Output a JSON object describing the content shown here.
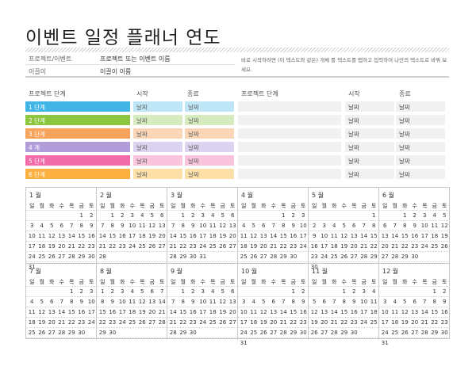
{
  "title": "이벤트 일정 플래너 연도",
  "info": {
    "project_label": "프로젝트/이벤트",
    "project_value": "프로젝트 또는 이벤트 이름",
    "leader_label": "이끌이",
    "leader_value": "이끌이 이름",
    "hint": "바로 시작하려면 (이 텍스트와 같은) 개체 를 텍스트를 탭하고 입력하여 나만의 텍스트로 바꿔 보세요."
  },
  "phases_header": {
    "name": "프로젝트 단계",
    "start": "시작",
    "end": "종료"
  },
  "phases": [
    {
      "name": "1 단계",
      "start": "날짜",
      "end": "날짜",
      "color": "#41b6e6",
      "light": "#bfe6f6"
    },
    {
      "name": "2 단계",
      "start": "날짜",
      "end": "날짜",
      "color": "#8cc63f",
      "light": "#d6ecbe"
    },
    {
      "name": "3 단계",
      "start": "날짜",
      "end": "날짜",
      "color": "#f7a35c",
      "light": "#fbd6b6"
    },
    {
      "name": "4 계",
      "start": "날짜",
      "end": "날짜",
      "color": "#b29ddb",
      "light": "#dcd3f0"
    },
    {
      "name": "5 단계",
      "start": "날짜",
      "end": "날짜",
      "color": "#f06ba8",
      "light": "#f9c4dc"
    },
    {
      "name": "6 단계",
      "start": "날짜",
      "end": "날짜",
      "color": "#fbb040",
      "light": "#fde0a8"
    }
  ],
  "right_header": {
    "name": "프로젝트 단계",
    "start": "시작",
    "end": "종료"
  },
  "right_rows": [
    {
      "start": "날짜",
      "end": "날짜"
    },
    {
      "start": "날짜",
      "end": "날짜"
    },
    {
      "start": "날짜",
      "end": "날짜"
    },
    {
      "start": "날짜",
      "end": "날짜"
    },
    {
      "start": "날짜",
      "end": "날짜"
    },
    {
      "start": "날짜",
      "end": "날짜"
    }
  ],
  "weekdays": [
    "일",
    "월",
    "화",
    "수",
    "목",
    "금",
    "토"
  ],
  "months": [
    {
      "name": "1 월",
      "first": 5,
      "days": 31
    },
    {
      "name": "2 월",
      "first": 1,
      "days": 28
    },
    {
      "name": "3 월",
      "first": 1,
      "days": 31
    },
    {
      "name": "4 월",
      "first": 4,
      "days": 30
    },
    {
      "name": "5 월",
      "first": 6,
      "days": 30
    },
    {
      "name": "6 월",
      "first": 2,
      "days": 30
    },
    {
      "name": "7 월",
      "first": 4,
      "days": 30
    },
    {
      "name": "8 월",
      "first": 0,
      "days": 30
    },
    {
      "name": "9 월",
      "first": 1,
      "days": 30
    },
    {
      "name": "10 월",
      "first": 5,
      "days": 31
    },
    {
      "name": "11 월",
      "first": 3,
      "days": 30
    },
    {
      "name": "12 월",
      "first": 5,
      "days": 31
    }
  ]
}
